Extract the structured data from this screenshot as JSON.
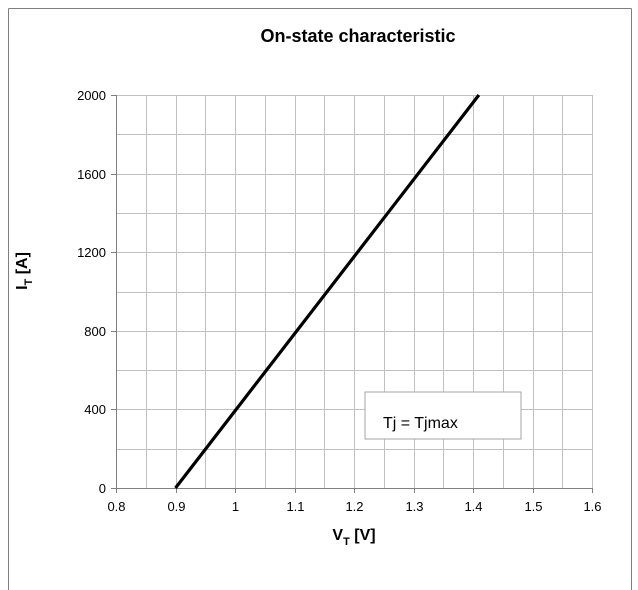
{
  "chart_data": {
    "type": "line",
    "title": "On-state characteristic",
    "xlabel": {
      "main": "V",
      "sub": "T",
      "unit": " [V]"
    },
    "ylabel": {
      "main": "I",
      "sub": "T",
      "unit": " [A]"
    },
    "xlim": [
      0.8,
      1.6
    ],
    "ylim": [
      0,
      2000
    ],
    "x_ticks": [
      "0.8",
      "0.9",
      "1",
      "1.1",
      "1.2",
      "1.3",
      "1.4",
      "1.5",
      "1.6"
    ],
    "y_ticks": [
      "0",
      "400",
      "800",
      "1200",
      "1600",
      "2000"
    ],
    "x_tick_values": [
      0.8,
      0.9,
      1.0,
      1.1,
      1.2,
      1.3,
      1.4,
      1.5,
      1.6
    ],
    "y_tick_values": [
      0,
      400,
      800,
      1200,
      1600,
      2000
    ],
    "x_minor_step": 0.05,
    "y_minor_step": 200,
    "grid": true,
    "series": [
      {
        "x": [
          0.9,
          1.41
        ],
        "y": [
          0,
          2000
        ],
        "color": "#000000"
      }
    ],
    "annotation": "Tj = Tjmax"
  }
}
